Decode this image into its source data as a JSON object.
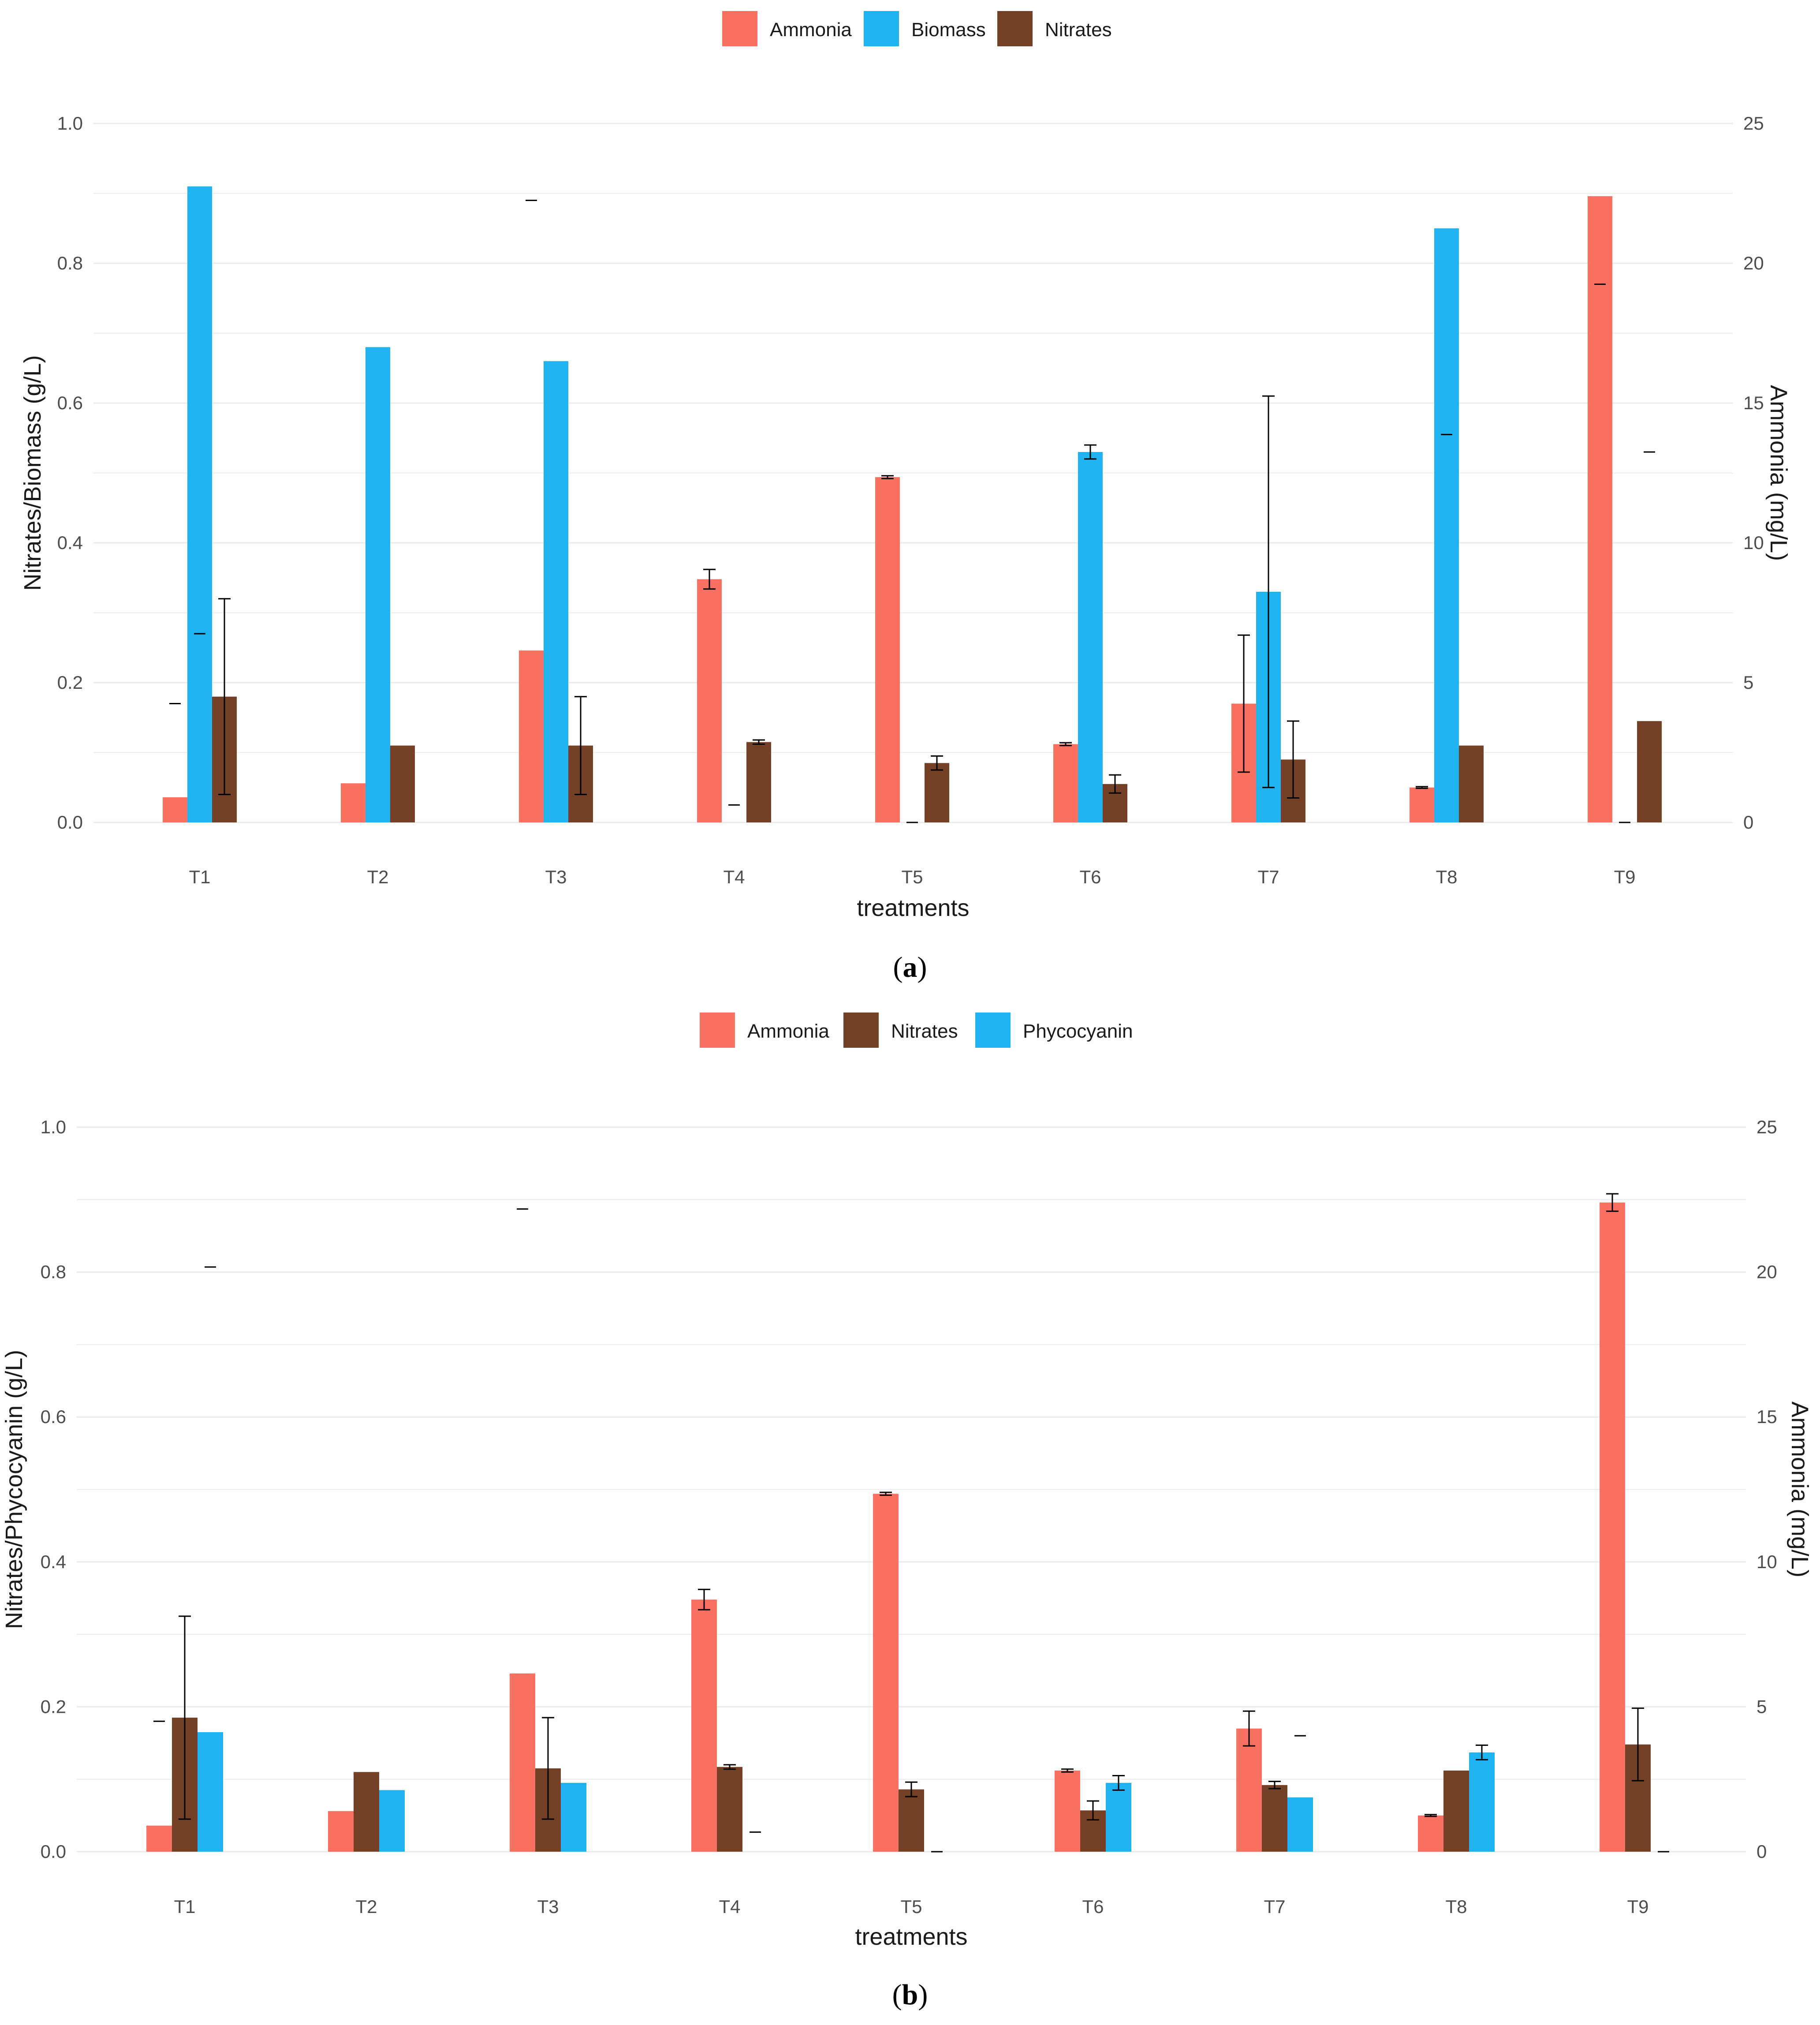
{
  "colors": {
    "Ammonia": "#FB7161",
    "Biomass": "#1FB3F1",
    "Phycocyanin": "#1FB3F1",
    "Nitrates": "#744126",
    "grid": "#EBEBEB",
    "errorbar": "#000000"
  },
  "chart_data": [
    {
      "panel": "a",
      "caption_letter": "a",
      "type": "bar",
      "legend": [
        "Ammonia",
        "Biomass",
        "Nitrates"
      ],
      "legend_position": "top",
      "xlabel": "treatments",
      "ylabel_left": "Nitrates/Biomass (g/L)",
      "ylabel_right": "Ammonia (mg/L)",
      "ylim_left": [
        0,
        1.0
      ],
      "ylim_right": [
        0,
        25
      ],
      "left_ticks": [
        "0.0",
        "0.2",
        "0.4",
        "0.6",
        "0.8",
        "1.0"
      ],
      "right_ticks": [
        "0",
        "5",
        "10",
        "15",
        "20",
        "25"
      ],
      "categories": [
        "T1",
        "T2",
        "T3",
        "T4",
        "T5",
        "T6",
        "T7",
        "T8",
        "T9"
      ],
      "series": [
        {
          "name": "Ammonia",
          "axis": "right",
          "values": [
            0.9,
            1.4,
            6.15,
            8.7,
            12.35,
            2.8,
            4.25,
            1.25,
            22.4
          ],
          "errors": [
            null,
            null,
            null,
            0.35,
            0.05,
            0.05,
            2.45,
            0.03,
            null
          ]
        },
        {
          "name": "Biomass",
          "axis": "left",
          "values": [
            0.91,
            0.68,
            0.66,
            null,
            null,
            0.53,
            0.33,
            0.85,
            null
          ],
          "errors": [
            null,
            null,
            null,
            null,
            null,
            0.01,
            0.28,
            null,
            null
          ]
        },
        {
          "name": "Nitrates",
          "axis": "left",
          "values": [
            0.18,
            0.11,
            0.11,
            0.115,
            0.085,
            0.055,
            0.09,
            0.11,
            0.145
          ],
          "errors": [
            0.14,
            null,
            0.07,
            0.003,
            0.01,
            0.013,
            0.055,
            null,
            null
          ]
        }
      ],
      "stray_marks": [
        {
          "category": "T1",
          "slot": 0,
          "value": 0.17
        },
        {
          "category": "T1",
          "slot": 1,
          "value": 0.27
        },
        {
          "category": "T3",
          "slot": 0,
          "value": 0.89
        },
        {
          "category": "T4",
          "slot": 1,
          "value": 0.025
        },
        {
          "category": "T5",
          "slot": 1,
          "value": 0.0
        },
        {
          "category": "T8",
          "slot": 1,
          "value": 0.555
        },
        {
          "category": "T9",
          "slot": 0,
          "value": 0.77
        },
        {
          "category": "T9",
          "slot": 1,
          "value": 0.0
        },
        {
          "category": "T9",
          "slot": 2,
          "value": 0.53
        }
      ]
    },
    {
      "panel": "b",
      "caption_letter": "b",
      "type": "bar",
      "legend": [
        "Ammonia",
        "Nitrates",
        "Phycocyanin"
      ],
      "legend_position": "top",
      "xlabel": "treatments",
      "ylabel_left": "Nitrates/Phycocyanin (g/L)",
      "ylabel_right": "Ammonia (mg/L)",
      "ylim_left": [
        0,
        1.0
      ],
      "ylim_right": [
        0,
        25
      ],
      "left_ticks": [
        "0.0",
        "0.2",
        "0.4",
        "0.6",
        "0.8",
        "1.0"
      ],
      "right_ticks": [
        "0",
        "5",
        "10",
        "15",
        "20",
        "25"
      ],
      "categories": [
        "T1",
        "T2",
        "T3",
        "T4",
        "T5",
        "T6",
        "T7",
        "T8",
        "T9"
      ],
      "series": [
        {
          "name": "Ammonia",
          "axis": "right",
          "values": [
            0.9,
            1.4,
            6.15,
            8.7,
            12.35,
            2.8,
            4.25,
            1.25,
            22.4
          ],
          "errors": [
            null,
            null,
            null,
            0.35,
            0.05,
            0.05,
            0.6,
            0.03,
            0.3
          ]
        },
        {
          "name": "Nitrates",
          "axis": "left",
          "values": [
            0.185,
            0.11,
            0.115,
            0.117,
            0.086,
            0.057,
            0.092,
            0.112,
            0.148
          ],
          "errors": [
            0.14,
            null,
            0.07,
            0.003,
            0.01,
            0.013,
            0.005,
            null,
            0.05
          ]
        },
        {
          "name": "Phycocyanin",
          "axis": "left",
          "values": [
            0.165,
            0.085,
            0.095,
            null,
            null,
            0.095,
            0.075,
            0.137,
            null
          ],
          "errors": [
            null,
            null,
            null,
            null,
            null,
            0.01,
            null,
            0.01,
            null
          ]
        }
      ],
      "stray_marks": [
        {
          "category": "T1",
          "slot": 0,
          "value": 0.18
        },
        {
          "category": "T1",
          "slot": 2,
          "value": 0.807
        },
        {
          "category": "T3",
          "slot": 0,
          "value": 0.887
        },
        {
          "category": "T4",
          "slot": 2,
          "value": 0.027
        },
        {
          "category": "T5",
          "slot": 2,
          "value": 0.0
        },
        {
          "category": "T7",
          "slot": 2,
          "value": 0.16
        },
        {
          "category": "T9",
          "slot": 2,
          "value": 0.0
        }
      ]
    }
  ]
}
